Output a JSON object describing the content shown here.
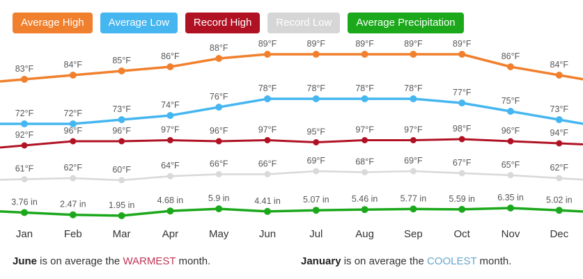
{
  "legend": [
    {
      "label": "Average High",
      "color": "#F0802D"
    },
    {
      "label": "Average Low",
      "color": "#45B6F0"
    },
    {
      "label": "Record High",
      "color": "#B01224"
    },
    {
      "label": "Record Low",
      "color": "#D6D6D6"
    },
    {
      "label": "Average Precipitation",
      "color": "#1BA81B"
    }
  ],
  "chart_data": {
    "type": "line",
    "categories": [
      "Jan",
      "Feb",
      "Mar",
      "Apr",
      "May",
      "Jun",
      "Jul",
      "Aug",
      "Sep",
      "Oct",
      "Nov",
      "Dec"
    ],
    "series": [
      {
        "name": "Average High",
        "unit": "°F",
        "color": "#F0802D",
        "values": [
          83,
          84,
          85,
          86,
          88,
          89,
          89,
          89,
          89,
          89,
          86,
          84
        ]
      },
      {
        "name": "Average Low",
        "unit": "°F",
        "color": "#45B6F0",
        "values": [
          72,
          72,
          73,
          74,
          76,
          78,
          78,
          78,
          78,
          77,
          75,
          73
        ]
      },
      {
        "name": "Record High",
        "unit": "°F",
        "color": "#B01224",
        "values": [
          92,
          96,
          96,
          97,
          96,
          97,
          95,
          97,
          97,
          98,
          96,
          94
        ]
      },
      {
        "name": "Record Low",
        "unit": "°F",
        "color": "#D9D9D9",
        "values": [
          61,
          62,
          60,
          64,
          66,
          66,
          69,
          68,
          69,
          67,
          65,
          62
        ]
      },
      {
        "name": "Average Precipitation",
        "unit": "in",
        "color": "#1BA81B",
        "values": [
          3.76,
          2.47,
          1.95,
          4.68,
          5.9,
          4.41,
          5.07,
          5.46,
          5.77,
          5.59,
          6.35,
          5.02
        ]
      }
    ],
    "legend_position": "top",
    "grid": false,
    "title": "",
    "xlabel": "",
    "ylabel": ""
  },
  "summary": {
    "warmest": {
      "month": "June",
      "mid": " is on average the ",
      "highlight": "WARMEST",
      "suffix": " month."
    },
    "coolest": {
      "month": "January",
      "mid": " is on average the ",
      "highlight": "COOLEST",
      "suffix": " month."
    }
  },
  "colors": {
    "warmest_highlight": "#BE3455",
    "coolest_highlight": "#64A5CC"
  }
}
